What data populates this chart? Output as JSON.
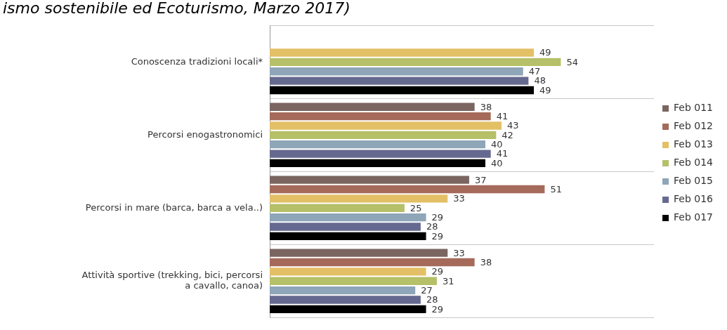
{
  "chart_data": {
    "type": "bar",
    "orientation": "horizontal",
    "title": "ismo sostenibile ed Ecoturismo, Marzo 2017)",
    "categories": [
      "Conoscenza tradizioni locali*",
      "Percorsi enogastronomici",
      "Percorsi in mare (barca, barca a vela..)",
      "Attività sportive (trekking, bici, percorsi\na cavallo, canoa)"
    ],
    "series": [
      {
        "name": "Feb 011",
        "color": "#7a6560",
        "values": [
          null,
          38,
          37,
          33
        ]
      },
      {
        "name": "Feb 012",
        "color": "#a56a5a",
        "values": [
          null,
          41,
          51,
          38
        ]
      },
      {
        "name": "Feb 013",
        "color": "#e3c066",
        "values": [
          49,
          43,
          33,
          29
        ]
      },
      {
        "name": "Feb 014",
        "color": "#b5c068",
        "values": [
          54,
          42,
          25,
          31
        ]
      },
      {
        "name": "Feb 015",
        "color": "#8fa5b8",
        "values": [
          47,
          40,
          29,
          27
        ]
      },
      {
        "name": "Feb 016",
        "color": "#66698f",
        "values": [
          48,
          41,
          28,
          28
        ]
      },
      {
        "name": "Feb 017",
        "color": "#000000",
        "values": [
          49,
          40,
          29,
          29
        ]
      }
    ],
    "data_labels": true,
    "grid": "y",
    "legend": "right"
  }
}
